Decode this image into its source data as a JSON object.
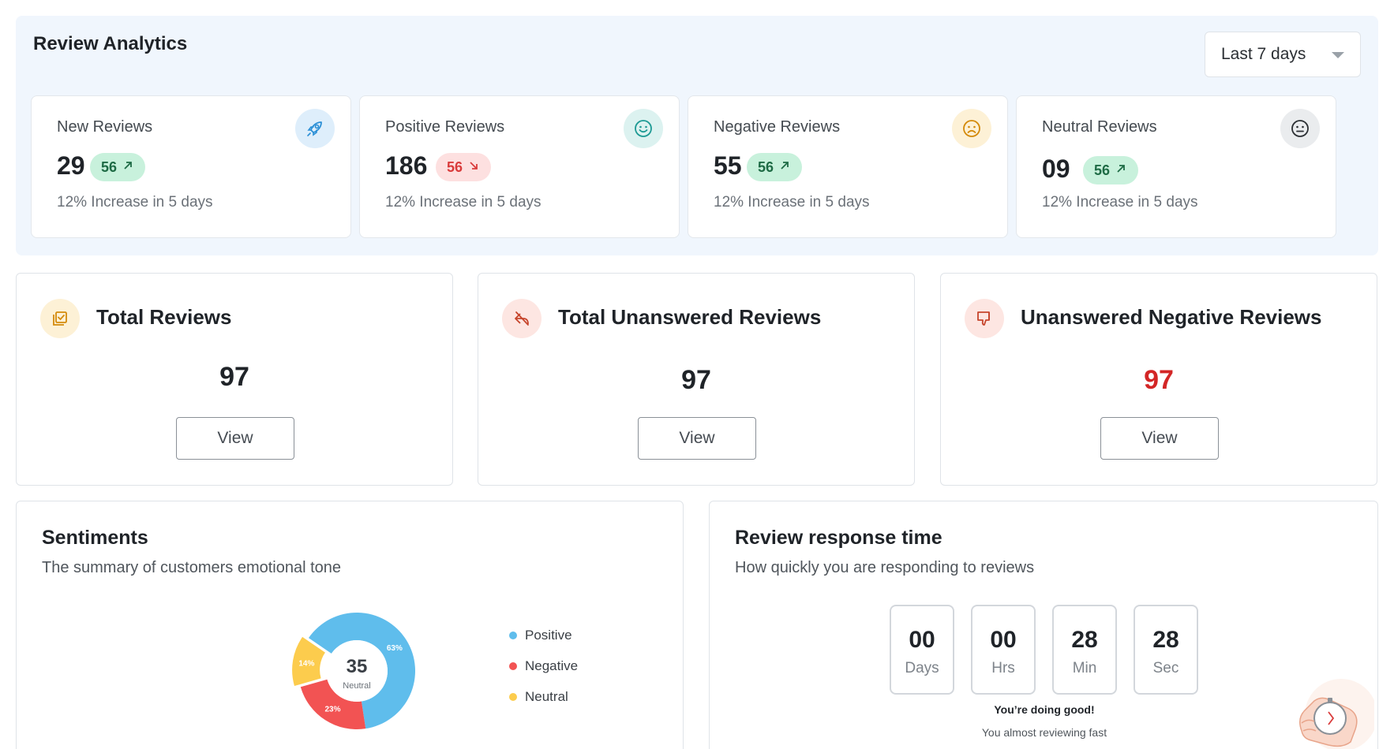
{
  "analytics": {
    "title": "Review Analytics",
    "range": {
      "selected": "Last 7 days"
    },
    "cards": [
      {
        "label": "New Reviews",
        "value": "29",
        "badge": "56",
        "trend": "up",
        "sub": "12% Increase in 5 days",
        "icon": "rocket-icon"
      },
      {
        "label": "Positive Reviews",
        "value": "186",
        "badge": "56",
        "trend": "down",
        "sub": "12% Increase in 5 days",
        "icon": "smile-icon"
      },
      {
        "label": "Negative Reviews",
        "value": "55",
        "badge": "56",
        "trend": "up",
        "sub": "12% Increase in 5 days",
        "icon": "frown-icon"
      },
      {
        "label": "Neutral Reviews",
        "value": "09",
        "badge": "56",
        "trend": "up",
        "sub": "12% Increase in 5 days",
        "icon": "neutral-face-icon"
      }
    ]
  },
  "totals": [
    {
      "title": "Total Reviews",
      "value": "97",
      "button": "View",
      "icon": "review-check-icon"
    },
    {
      "title": "Total Unanswered Reviews",
      "value": "97",
      "button": "View",
      "icon": "no-reply-icon"
    },
    {
      "title": "Unanswered Negative Reviews",
      "value": "97",
      "button": "View",
      "icon": "thumbs-down-icon"
    }
  ],
  "sentiments": {
    "title": "Sentiments",
    "subtitle": "The summary of customers emotional tone",
    "center_value": "35",
    "center_label": "Neutral",
    "legend": [
      "Positive",
      "Negative",
      "Neutral"
    ]
  },
  "chart_data": {
    "type": "pie",
    "categories": [
      "Positive",
      "Negative",
      "Neutral"
    ],
    "values": [
      63,
      23,
      14
    ],
    "data_labels": [
      "63%",
      "23%",
      "14%"
    ],
    "colors": [
      "#5fbdec",
      "#f25353",
      "#fccc4d"
    ],
    "legend_placement": "right"
  },
  "response_time": {
    "title": "Review response time",
    "subtitle": "How quickly you are responding to reviews",
    "units": [
      {
        "value": "00",
        "label": "Days"
      },
      {
        "value": "00",
        "label": "Hrs"
      },
      {
        "value": "28",
        "label": "Min"
      },
      {
        "value": "28",
        "label": "Sec"
      }
    ],
    "message": "You’re doing good!",
    "note": "You almost reviewing fast",
    "illustration": "hand-stopwatch-icon"
  },
  "colors": {
    "accent_bg": "#f0f6fd",
    "positive": "#1e6b45",
    "negative": "#d93b3b",
    "alert_value": "#d32626"
  }
}
